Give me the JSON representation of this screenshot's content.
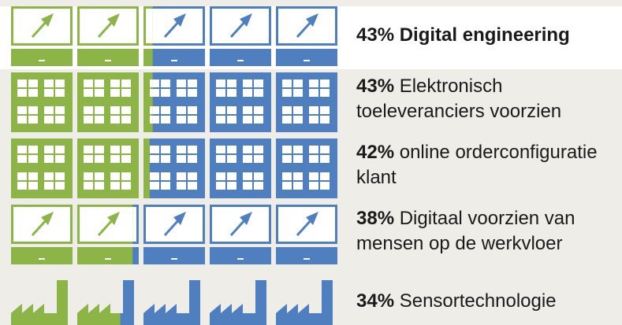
{
  "chart_data": {
    "type": "pictograph",
    "categories": [
      "Digital engineering",
      "Elektronisch toeleveranciers voorzien",
      "online orderconfiguratie klant",
      "Digitaal voorzien van mensen op de werkvloer",
      "Sensortechnologie"
    ],
    "values": [
      43,
      43,
      42,
      38,
      34
    ],
    "value_labels": [
      "43%",
      "43%",
      "42%",
      "38%",
      "34%"
    ],
    "colors": {
      "filled": "#8db447",
      "empty": "#4f7fbf"
    }
  }
}
